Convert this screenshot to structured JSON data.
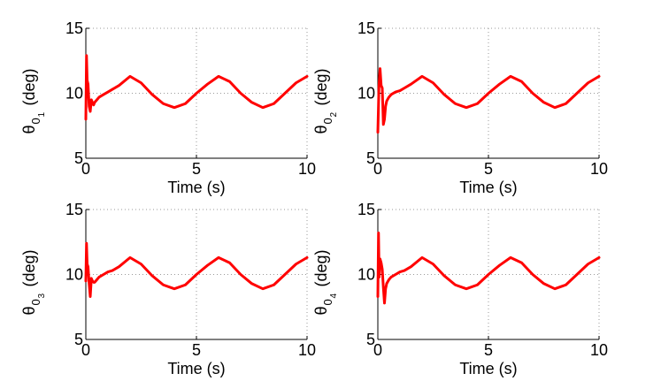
{
  "chart_data": [
    {
      "type": "line",
      "ylabel_main": "θ",
      "ylabel_sub": "0",
      "ylabel_subsub": "1",
      "ylabel_unit": "(deg)",
      "xlabel": "Time (s)",
      "xlim": [
        0,
        10
      ],
      "ylim": [
        5,
        15
      ],
      "xticks": [
        "0",
        "5",
        "10"
      ],
      "yticks": [
        "5",
        "10",
        "15"
      ],
      "grid": true,
      "series": [
        {
          "color": "#ff0000",
          "x": [
            0,
            0.03,
            0.06,
            0.1,
            0.15,
            0.2,
            0.25,
            0.3,
            0.35,
            0.4,
            0.5,
            0.6,
            0.8,
            1.0,
            1.2,
            1.5,
            2.0,
            2.5,
            3.0,
            3.5,
            4.0,
            4.5,
            5.0,
            5.5,
            6.0,
            6.5,
            7.0,
            7.5,
            8.0,
            8.5,
            9.0,
            9.5,
            10.0
          ],
          "y": [
            8.0,
            12.9,
            11.0,
            10.7,
            9.0,
            8.6,
            9.5,
            9.3,
            9.1,
            9.3,
            9.5,
            9.7,
            9.9,
            10.1,
            10.3,
            10.6,
            11.3,
            10.8,
            9.9,
            9.2,
            8.9,
            9.2,
            10.0,
            10.7,
            11.3,
            10.9,
            10.0,
            9.3,
            8.9,
            9.2,
            10.0,
            10.8,
            11.3
          ]
        }
      ]
    },
    {
      "type": "line",
      "ylabel_main": "θ",
      "ylabel_sub": "0",
      "ylabel_subsub": "2",
      "ylabel_unit": "(deg)",
      "xlabel": "Time (s)",
      "xlim": [
        0,
        10
      ],
      "ylim": [
        5,
        15
      ],
      "xticks": [
        "0",
        "5",
        "10"
      ],
      "yticks": [
        "5",
        "10",
        "15"
      ],
      "grid": true,
      "series": [
        {
          "color": "#ff0000",
          "x": [
            0,
            0.05,
            0.1,
            0.15,
            0.2,
            0.25,
            0.3,
            0.35,
            0.4,
            0.5,
            0.6,
            0.8,
            1.0,
            1.2,
            1.5,
            2.0,
            2.5,
            3.0,
            3.5,
            4.0,
            4.5,
            5.0,
            5.5,
            6.0,
            6.5,
            7.0,
            7.5,
            8.0,
            8.5,
            9.0,
            9.5,
            10.0
          ],
          "y": [
            7.0,
            10.5,
            11.9,
            10.6,
            10.4,
            7.6,
            8.0,
            9.0,
            9.4,
            9.7,
            9.9,
            10.1,
            10.2,
            10.4,
            10.7,
            11.3,
            10.8,
            9.9,
            9.2,
            8.9,
            9.2,
            10.0,
            10.7,
            11.3,
            10.9,
            10.0,
            9.3,
            8.9,
            9.2,
            10.0,
            10.8,
            11.3
          ]
        }
      ]
    },
    {
      "type": "line",
      "ylabel_main": "θ",
      "ylabel_sub": "0",
      "ylabel_subsub": "3",
      "ylabel_unit": "(deg)",
      "xlabel": "Time (s)",
      "xlim": [
        0,
        10
      ],
      "ylim": [
        5,
        15
      ],
      "xticks": [
        "0",
        "5",
        "10"
      ],
      "yticks": [
        "5",
        "10",
        "15"
      ],
      "grid": true,
      "series": [
        {
          "color": "#ff0000",
          "x": [
            0,
            0.03,
            0.06,
            0.1,
            0.15,
            0.2,
            0.25,
            0.3,
            0.35,
            0.4,
            0.5,
            0.6,
            0.8,
            1.0,
            1.2,
            1.5,
            2.0,
            2.5,
            3.0,
            3.5,
            4.0,
            4.5,
            5.0,
            5.5,
            6.0,
            6.5,
            7.0,
            7.5,
            8.0,
            8.5,
            9.0,
            9.5,
            10.0
          ],
          "y": [
            9.5,
            12.4,
            10.8,
            10.6,
            9.3,
            8.3,
            9.7,
            9.5,
            9.4,
            9.4,
            9.6,
            9.8,
            10.0,
            10.2,
            10.3,
            10.6,
            11.3,
            10.8,
            9.9,
            9.2,
            8.9,
            9.2,
            10.0,
            10.7,
            11.3,
            10.9,
            10.0,
            9.3,
            8.9,
            9.2,
            10.0,
            10.8,
            11.3
          ]
        }
      ]
    },
    {
      "type": "line",
      "ylabel_main": "θ",
      "ylabel_sub": "0",
      "ylabel_subsub": "4",
      "ylabel_unit": "(deg)",
      "xlabel": "Time (s)",
      "xlim": [
        0,
        10
      ],
      "ylim": [
        5,
        15
      ],
      "xticks": [
        "0",
        "5",
        "10"
      ],
      "yticks": [
        "5",
        "10",
        "15"
      ],
      "grid": true,
      "series": [
        {
          "color": "#ff0000",
          "x": [
            0,
            0.03,
            0.06,
            0.1,
            0.15,
            0.2,
            0.25,
            0.3,
            0.35,
            0.4,
            0.5,
            0.6,
            0.8,
            1.0,
            1.2,
            1.5,
            2.0,
            2.5,
            3.0,
            3.5,
            4.0,
            4.5,
            5.0,
            5.5,
            6.0,
            6.5,
            7.0,
            7.5,
            8.0,
            8.5,
            9.0,
            9.5,
            10.0
          ],
          "y": [
            8.3,
            13.2,
            9.8,
            11.2,
            10.9,
            10.4,
            9.0,
            7.8,
            8.9,
            9.3,
            9.6,
            9.8,
            10.0,
            10.2,
            10.3,
            10.6,
            11.3,
            10.8,
            9.9,
            9.2,
            8.9,
            9.2,
            10.0,
            10.7,
            11.3,
            10.9,
            10.0,
            9.3,
            8.9,
            9.2,
            10.0,
            10.8,
            11.3
          ]
        }
      ]
    }
  ]
}
